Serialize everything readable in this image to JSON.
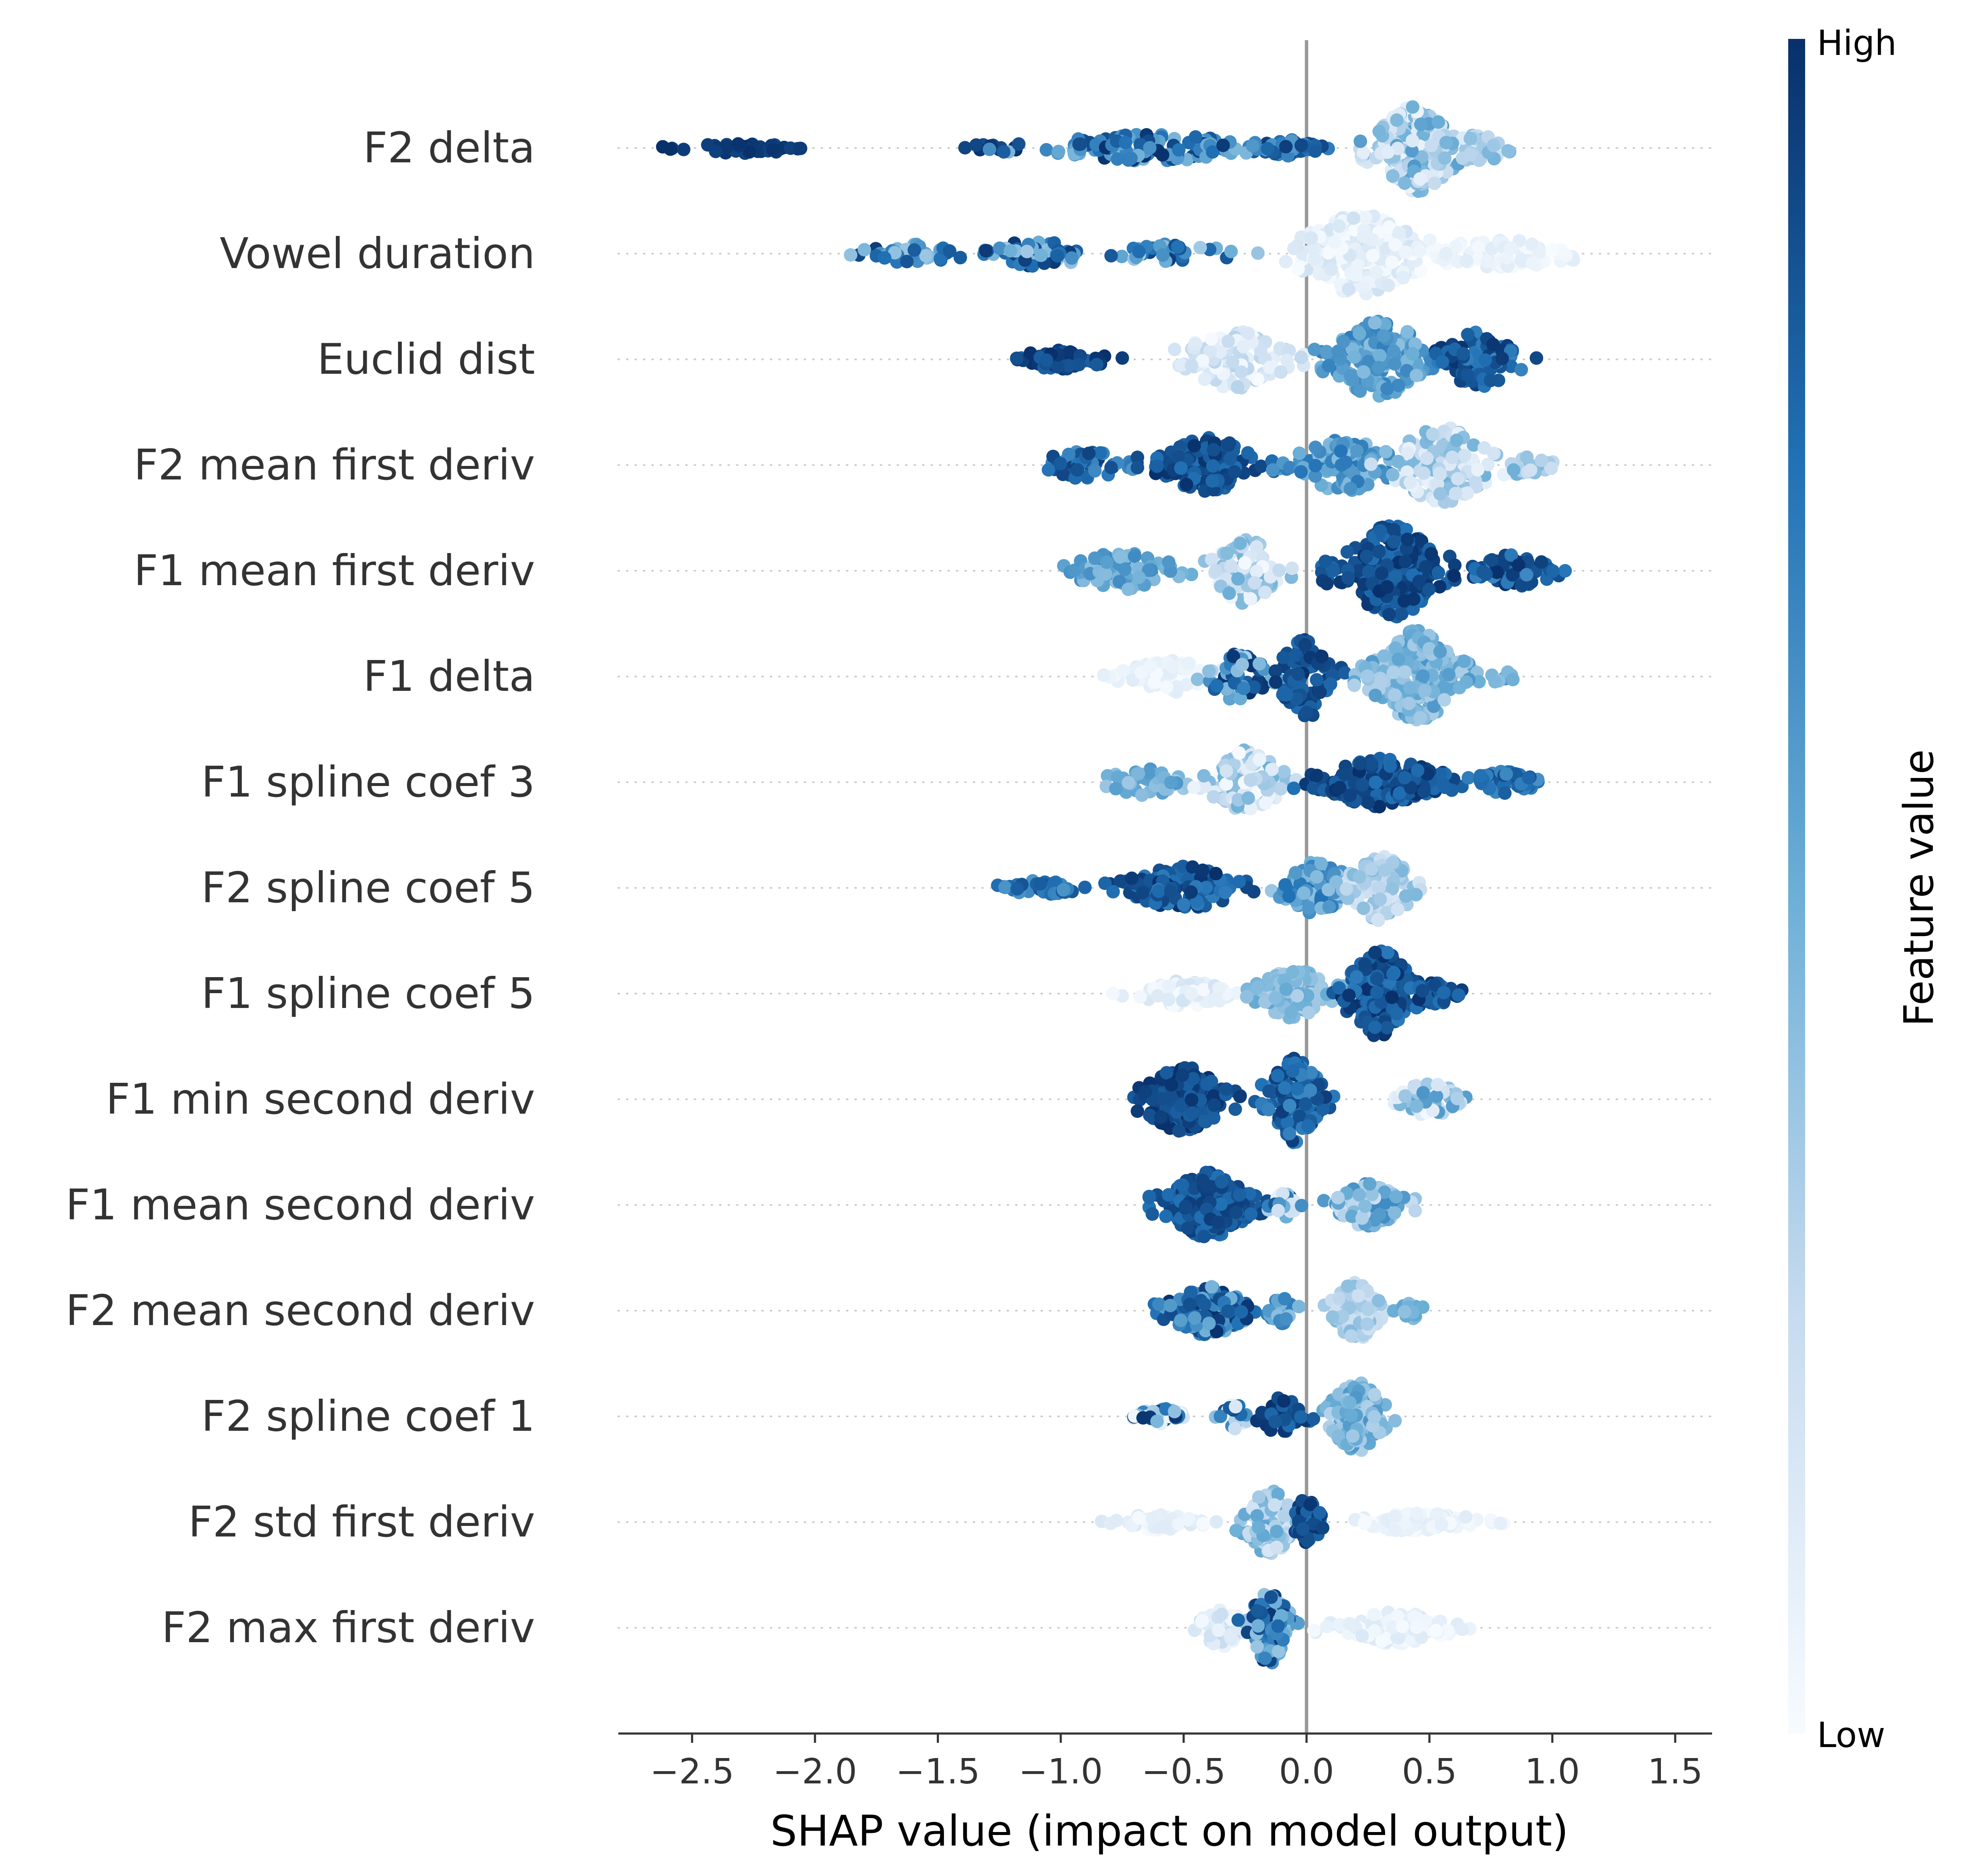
{
  "chart_data": {
    "type": "scatter",
    "subtype": "shap-beeswarm",
    "title": "",
    "xlabel": "SHAP value (impact on model output)",
    "ylabel": "",
    "xlim": [
      -2.8,
      1.65
    ],
    "x_ticks": [
      -2.5,
      -2.0,
      -1.5,
      -1.0,
      -0.5,
      0.0,
      0.5,
      1.0,
      1.5
    ],
    "x_tick_labels": [
      "−2.5",
      "−2.0",
      "−1.5",
      "−1.0",
      "−0.5",
      "0.0",
      "0.5",
      "1.0",
      "1.5"
    ],
    "zero_line": 0.0,
    "colorbar": {
      "title": "Feature value",
      "high_label": "High",
      "low_label": "Low",
      "color_high": "#08306b",
      "color_mid": "#4292c6",
      "color_low": "#f7fbff",
      "colormap": "Blues"
    },
    "features": [
      {
        "name": "F2 delta",
        "clusters": [
          {
            "x": -2.3,
            "spread": 0.22,
            "n": 45,
            "fv": [
              0.92,
              1.0
            ],
            "w": 0.02
          },
          {
            "x": -1.3,
            "spread": 0.1,
            "n": 12,
            "fv": [
              0.85,
              1.0
            ],
            "w": 0.02
          },
          {
            "x": -0.65,
            "spread": 0.4,
            "n": 130,
            "fv": [
              0.45,
              1.0
            ],
            "w": 0.05
          },
          {
            "x": -0.05,
            "spread": 0.13,
            "n": 45,
            "fv": [
              0.5,
              0.95
            ],
            "w": 0.03
          },
          {
            "x": 0.45,
            "spread": 0.15,
            "n": 200,
            "fv": [
              0.05,
              0.6
            ],
            "w": 0.16
          },
          {
            "x": 0.7,
            "spread": 0.12,
            "n": 35,
            "fv": [
              0.2,
              0.5
            ],
            "w": 0.05
          }
        ]
      },
      {
        "name": "Vowel duration",
        "clusters": [
          {
            "x": -1.6,
            "spread": 0.18,
            "n": 40,
            "fv": [
              0.35,
              1.0
            ],
            "w": 0.035
          },
          {
            "x": -1.1,
            "spread": 0.22,
            "n": 55,
            "fv": [
              0.35,
              1.0
            ],
            "w": 0.045
          },
          {
            "x": -0.55,
            "spread": 0.22,
            "n": 45,
            "fv": [
              0.3,
              0.95
            ],
            "w": 0.035
          },
          {
            "x": 0.22,
            "spread": 0.22,
            "n": 220,
            "fv": [
              0.0,
              0.2
            ],
            "w": 0.15
          },
          {
            "x": 0.8,
            "spread": 0.3,
            "n": 90,
            "fv": [
              0.0,
              0.12
            ],
            "w": 0.05
          }
        ]
      },
      {
        "name": "Euclid dist",
        "clusters": [
          {
            "x": -1.0,
            "spread": 0.16,
            "n": 50,
            "fv": [
              0.8,
              1.0
            ],
            "w": 0.04
          },
          {
            "x": -0.3,
            "spread": 0.18,
            "n": 110,
            "fv": [
              0.0,
              0.3
            ],
            "w": 0.11
          },
          {
            "x": 0.3,
            "spread": 0.18,
            "n": 160,
            "fv": [
              0.4,
              0.7
            ],
            "w": 0.14
          },
          {
            "x": 0.7,
            "spread": 0.15,
            "n": 90,
            "fv": [
              0.65,
              1.0
            ],
            "w": 0.1
          }
        ]
      },
      {
        "name": "F2 mean first deriv",
        "clusters": [
          {
            "x": -0.9,
            "spread": 0.18,
            "n": 55,
            "fv": [
              0.6,
              0.95
            ],
            "w": 0.05
          },
          {
            "x": -0.4,
            "spread": 0.18,
            "n": 130,
            "fv": [
              0.75,
              1.0
            ],
            "w": 0.1
          },
          {
            "x": 0.15,
            "spread": 0.18,
            "n": 120,
            "fv": [
              0.4,
              0.75
            ],
            "w": 0.1
          },
          {
            "x": 0.55,
            "spread": 0.18,
            "n": 150,
            "fv": [
              0.05,
              0.5
            ],
            "w": 0.14
          },
          {
            "x": 0.9,
            "spread": 0.1,
            "n": 20,
            "fv": [
              0.2,
              0.5
            ],
            "w": 0.04
          }
        ]
      },
      {
        "name": "F1 mean first deriv",
        "clusters": [
          {
            "x": -0.75,
            "spread": 0.2,
            "n": 70,
            "fv": [
              0.4,
              0.65
            ],
            "w": 0.07
          },
          {
            "x": -0.25,
            "spread": 0.12,
            "n": 110,
            "fv": [
              0.0,
              0.5
            ],
            "w": 0.12
          },
          {
            "x": 0.35,
            "spread": 0.18,
            "n": 250,
            "fv": [
              0.75,
              1.0
            ],
            "w": 0.17
          },
          {
            "x": 0.85,
            "spread": 0.18,
            "n": 70,
            "fv": [
              0.65,
              1.0
            ],
            "w": 0.06
          }
        ]
      },
      {
        "name": "F1 delta",
        "clusters": [
          {
            "x": -0.55,
            "spread": 0.18,
            "n": 60,
            "fv": [
              0.0,
              0.12
            ],
            "w": 0.06
          },
          {
            "x": -0.3,
            "spread": 0.12,
            "n": 60,
            "fv": [
              0.3,
              1.0
            ],
            "w": 0.09
          },
          {
            "x": 0.0,
            "spread": 0.1,
            "n": 90,
            "fv": [
              0.75,
              1.0
            ],
            "w": 0.15
          },
          {
            "x": 0.45,
            "spread": 0.16,
            "n": 220,
            "fv": [
              0.3,
              0.6
            ],
            "w": 0.17
          },
          {
            "x": 0.8,
            "spread": 0.05,
            "n": 8,
            "fv": [
              0.4,
              0.6
            ],
            "w": 0.03
          }
        ]
      },
      {
        "name": "F1 spline coef 3",
        "clusters": [
          {
            "x": -0.65,
            "spread": 0.16,
            "n": 50,
            "fv": [
              0.35,
              0.6
            ],
            "w": 0.05
          },
          {
            "x": -0.25,
            "spread": 0.13,
            "n": 120,
            "fv": [
              0.0,
              0.5
            ],
            "w": 0.12
          },
          {
            "x": 0.3,
            "spread": 0.22,
            "n": 200,
            "fv": [
              0.75,
              1.0
            ],
            "w": 0.09
          },
          {
            "x": 0.8,
            "spread": 0.14,
            "n": 50,
            "fv": [
              0.6,
              0.9
            ],
            "w": 0.04
          }
        ]
      },
      {
        "name": "F2 spline coef 5",
        "clusters": [
          {
            "x": -1.1,
            "spread": 0.14,
            "n": 35,
            "fv": [
              0.6,
              0.9
            ],
            "w": 0.03
          },
          {
            "x": -0.5,
            "spread": 0.2,
            "n": 140,
            "fv": [
              0.7,
              1.0
            ],
            "w": 0.08
          },
          {
            "x": 0.05,
            "spread": 0.12,
            "n": 110,
            "fv": [
              0.35,
              0.75
            ],
            "w": 0.1
          },
          {
            "x": 0.3,
            "spread": 0.12,
            "n": 110,
            "fv": [
              0.15,
              0.45
            ],
            "w": 0.12
          }
        ]
      },
      {
        "name": "F1 spline coef 5",
        "clusters": [
          {
            "x": -0.5,
            "spread": 0.18,
            "n": 80,
            "fv": [
              0.0,
              0.2
            ],
            "w": 0.05
          },
          {
            "x": -0.05,
            "spread": 0.14,
            "n": 110,
            "fv": [
              0.3,
              0.55
            ],
            "w": 0.09
          },
          {
            "x": 0.3,
            "spread": 0.12,
            "n": 180,
            "fv": [
              0.7,
              1.0
            ],
            "w": 0.16
          },
          {
            "x": 0.52,
            "spread": 0.08,
            "n": 40,
            "fv": [
              0.75,
              1.0
            ],
            "w": 0.04
          }
        ]
      },
      {
        "name": "F1 min second deriv",
        "clusters": [
          {
            "x": -0.5,
            "spread": 0.15,
            "n": 200,
            "fv": [
              0.8,
              1.0
            ],
            "w": 0.12
          },
          {
            "x": -0.05,
            "spread": 0.1,
            "n": 150,
            "fv": [
              0.65,
              0.95
            ],
            "w": 0.16
          },
          {
            "x": 0.5,
            "spread": 0.12,
            "n": 70,
            "fv": [
              0.0,
              0.6
            ],
            "w": 0.06
          }
        ]
      },
      {
        "name": "F1 mean second deriv",
        "clusters": [
          {
            "x": -0.4,
            "spread": 0.15,
            "n": 250,
            "fv": [
              0.75,
              0.95
            ],
            "w": 0.12
          },
          {
            "x": -0.1,
            "spread": 0.05,
            "n": 30,
            "fv": [
              0.0,
              1.0
            ],
            "w": 0.05
          },
          {
            "x": 0.25,
            "spread": 0.12,
            "n": 130,
            "fv": [
              0.2,
              0.65
            ],
            "w": 0.08
          }
        ]
      },
      {
        "name": "F2 mean second deriv",
        "clusters": [
          {
            "x": -0.4,
            "spread": 0.14,
            "n": 170,
            "fv": [
              0.45,
              1.0
            ],
            "w": 0.09
          },
          {
            "x": -0.1,
            "spread": 0.05,
            "n": 30,
            "fv": [
              0.4,
              0.7
            ],
            "w": 0.05
          },
          {
            "x": 0.2,
            "spread": 0.08,
            "n": 100,
            "fv": [
              0.2,
              0.45
            ],
            "w": 0.11
          },
          {
            "x": 0.42,
            "spread": 0.06,
            "n": 20,
            "fv": [
              0.4,
              0.55
            ],
            "w": 0.03
          }
        ]
      },
      {
        "name": "F2 spline coef 1",
        "clusters": [
          {
            "x": -0.6,
            "spread": 0.1,
            "n": 35,
            "fv": [
              0.0,
              1.0
            ],
            "w": 0.03
          },
          {
            "x": -0.3,
            "spread": 0.06,
            "n": 25,
            "fv": [
              0.0,
              0.95
            ],
            "w": 0.05
          },
          {
            "x": -0.1,
            "spread": 0.08,
            "n": 40,
            "fv": [
              0.75,
              1.0
            ],
            "w": 0.07
          },
          {
            "x": 0.2,
            "spread": 0.1,
            "n": 150,
            "fv": [
              0.3,
              0.6
            ],
            "w": 0.13
          }
        ]
      },
      {
        "name": "F2 std first deriv",
        "clusters": [
          {
            "x": -0.6,
            "spread": 0.16,
            "n": 45,
            "fv": [
              0.0,
              0.15
            ],
            "w": 0.03
          },
          {
            "x": -0.15,
            "spread": 0.09,
            "n": 110,
            "fv": [
              0.15,
              0.55
            ],
            "w": 0.12
          },
          {
            "x": 0.0,
            "spread": 0.05,
            "n": 50,
            "fv": [
              0.75,
              1.0
            ],
            "w": 0.09
          },
          {
            "x": 0.45,
            "spread": 0.22,
            "n": 110,
            "fv": [
              0.0,
              0.12
            ],
            "w": 0.035
          }
        ]
      },
      {
        "name": "F2 max first deriv",
        "clusters": [
          {
            "x": -0.35,
            "spread": 0.09,
            "n": 60,
            "fv": [
              0.0,
              0.3
            ],
            "w": 0.07
          },
          {
            "x": -0.15,
            "spread": 0.08,
            "n": 110,
            "fv": [
              0.35,
              1.0
            ],
            "w": 0.13
          },
          {
            "x": 0.35,
            "spread": 0.2,
            "n": 110,
            "fv": [
              0.0,
              0.15
            ],
            "w": 0.06
          }
        ]
      }
    ]
  }
}
